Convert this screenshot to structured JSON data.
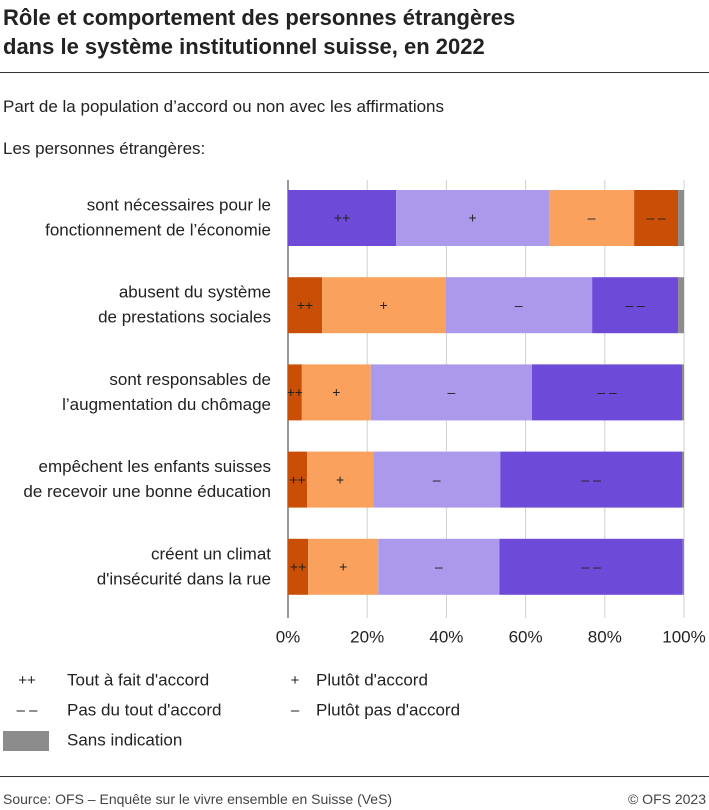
{
  "chart_data": {
    "type": "stacked-bar-horizontal",
    "title": "Rôle et comportement des personnes étrangères dans le système institutionnel suisse, en 2022",
    "subtitle": "Part de la population d’accord ou non avec les affirmations",
    "group_label": "Les personnes étrangères:",
    "categories": [
      [
        "sont nécessaires pour le",
        "fonctionnement de l’économie"
      ],
      [
        "abusent du système",
        "de prestations sociales"
      ],
      [
        "sont responsables de",
        "l’augmentation du chômage"
      ],
      [
        "empêchent les enfants suisses",
        "de recevoir une bonne éducation"
      ],
      [
        "créent un climat",
        "d'insécurité dans la rue"
      ]
    ],
    "series": [
      {
        "name": "Tout à fait d'accord",
        "symbol": "++",
        "colors": [
          "#6e4ad9",
          "#c94f07",
          "#c94f07",
          "#c94f07",
          "#c94f07"
        ],
        "values": [
          27.3,
          8.6,
          3.5,
          4.8,
          5.1
        ]
      },
      {
        "name": "Plutôt d'accord",
        "symbol": "+",
        "colors": [
          "#ab9aeb",
          "#f9a15d",
          "#f9a15d",
          "#f9a15d",
          "#f9a15d"
        ],
        "values": [
          38.6,
          31.1,
          17.4,
          16.7,
          17.7
        ]
      },
      {
        "name": "Plutôt pas d'accord",
        "symbol": "–",
        "colors": [
          "#f9a15d",
          "#ab9aeb",
          "#ab9aeb",
          "#ab9aeb",
          "#ab9aeb"
        ],
        "values": [
          21.5,
          37.1,
          40.7,
          32.1,
          30.6
        ]
      },
      {
        "name": "Pas du tout d'accord",
        "symbol": "– –",
        "colors": [
          "#c94f07",
          "#6e4ad9",
          "#6e4ad9",
          "#6e4ad9",
          "#6e4ad9"
        ],
        "values": [
          11.1,
          21.7,
          37.9,
          45.9,
          46.3
        ]
      },
      {
        "name": "Sans indication",
        "colors": [
          "#8c8c8c",
          "#8c8c8c",
          "#8c8c8c",
          "#8c8c8c",
          "#8c8c8c"
        ],
        "values": [
          1.5,
          1.5,
          0.5,
          0.5,
          0.3
        ]
      }
    ],
    "xlim": [
      0,
      100
    ],
    "xticks": [
      {
        "value": 0,
        "label": "0%"
      },
      {
        "value": 20,
        "label": "20%"
      },
      {
        "value": 40,
        "label": "40%"
      },
      {
        "value": 60,
        "label": "60%"
      },
      {
        "value": 80,
        "label": "80%"
      },
      {
        "value": 100,
        "label": "100%"
      }
    ],
    "grid": true,
    "source": "Source: OFS – Enquête sur le vivre ensemble en Suisse (VeS)",
    "copyright": "© OFS 2023"
  }
}
